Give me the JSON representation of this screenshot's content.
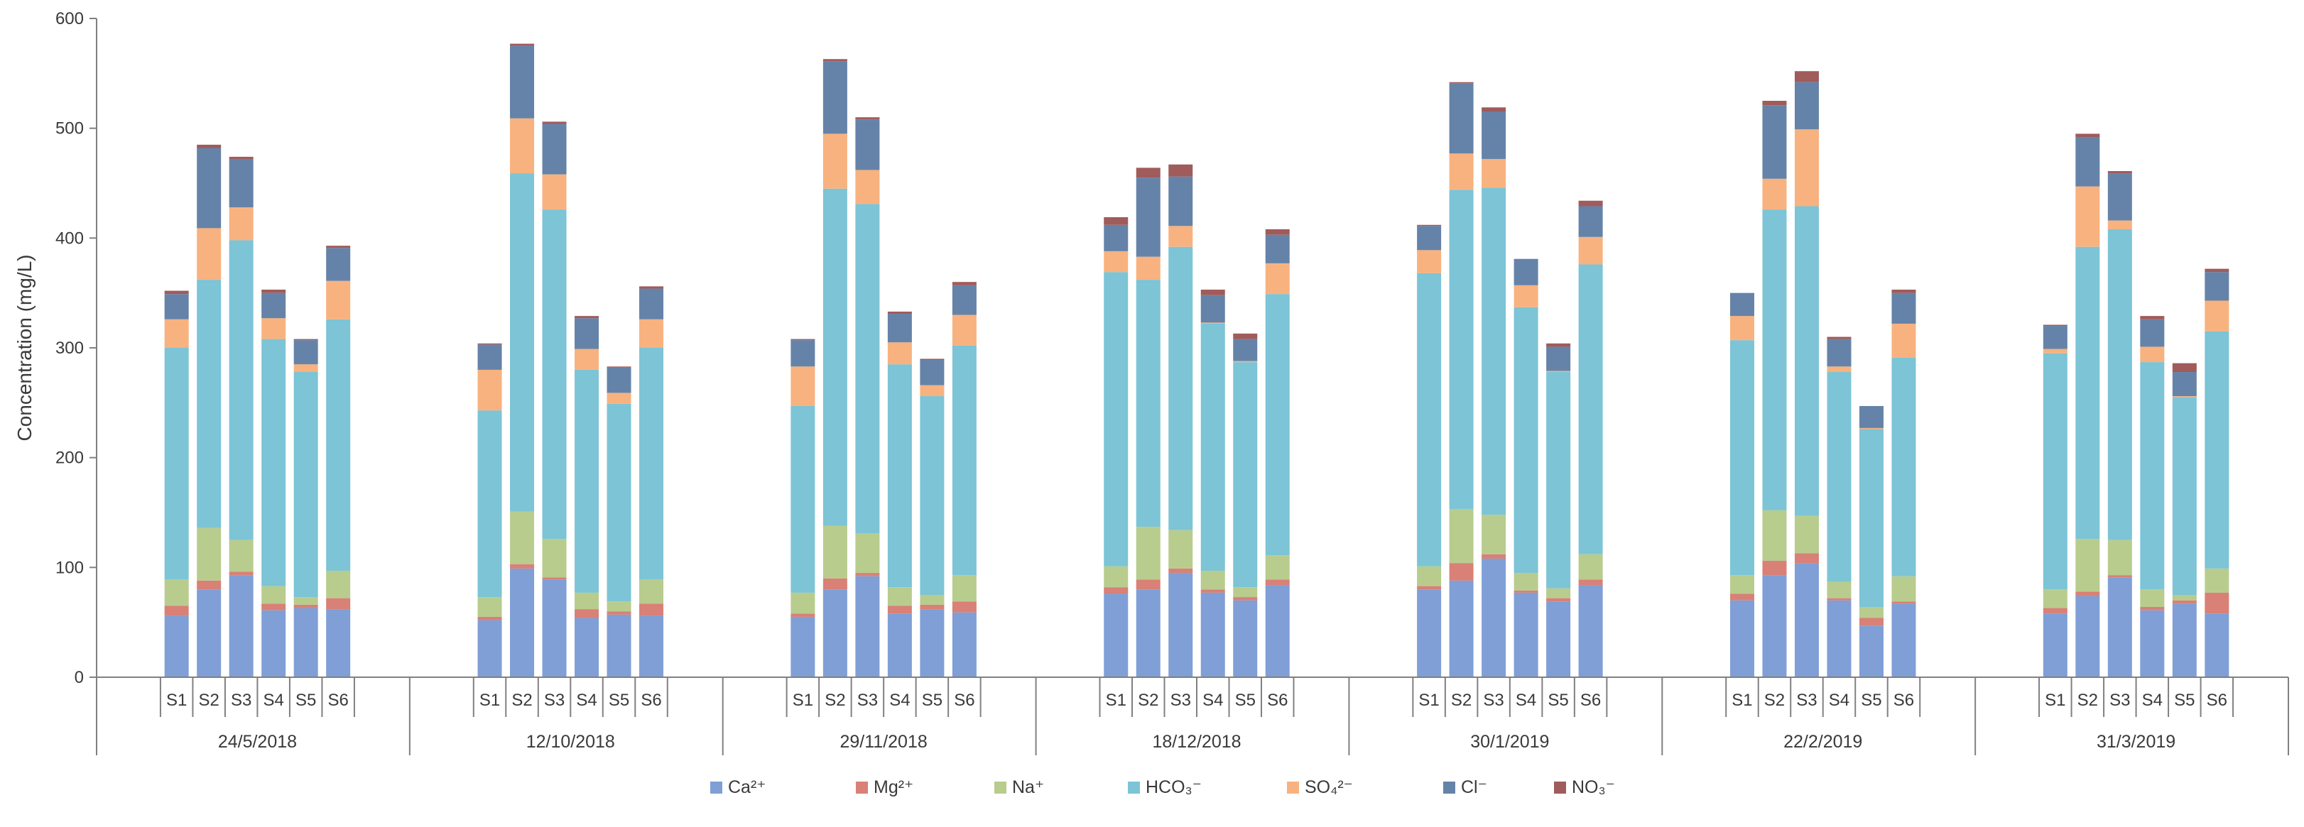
{
  "chart_data": {
    "type": "bar",
    "stacked": true,
    "title": "",
    "ylabel": "Concentration (mg/L)",
    "xlabel": "",
    "ylim": [
      0,
      600
    ],
    "yticks": [
      0,
      100,
      200,
      300,
      400,
      500,
      600
    ],
    "grid": false,
    "legend_position": "bottom",
    "sites": [
      "S1",
      "S2",
      "S3",
      "S4",
      "S5",
      "S6"
    ],
    "dates": [
      "24/5/2018",
      "12/10/2018",
      "29/11/2018",
      "18/12/2018",
      "30/1/2019",
      "22/2/2019",
      "31/3/2019"
    ],
    "series": [
      {
        "name": "Ca²⁺",
        "color": "#7f9fd6",
        "values": [
          [
            56,
            80,
            93,
            61,
            63,
            62
          ],
          [
            52,
            99,
            89,
            54,
            57,
            56
          ],
          [
            55,
            80,
            92,
            58,
            62,
            59
          ],
          [
            76,
            80,
            95,
            77,
            70,
            84
          ],
          [
            80,
            88,
            108,
            77,
            69,
            84
          ],
          [
            70,
            93,
            104,
            70,
            47,
            67
          ],
          [
            58,
            74,
            91,
            61,
            67,
            58
          ]
        ]
      },
      {
        "name": "Mg²⁺",
        "color": "#d98077",
        "values": [
          [
            9,
            8,
            3,
            6,
            3,
            10
          ],
          [
            3,
            4,
            2,
            8,
            3,
            11
          ],
          [
            3,
            10,
            3,
            7,
            4,
            10
          ],
          [
            6,
            9,
            4,
            3,
            3,
            5
          ],
          [
            3,
            16,
            4,
            2,
            3,
            5
          ],
          [
            6,
            13,
            9,
            2,
            7,
            2
          ],
          [
            5,
            4,
            2,
            3,
            3,
            19
          ]
        ]
      },
      {
        "name": "Na⁺",
        "color": "#b8cc8e",
        "values": [
          [
            24,
            48,
            29,
            16,
            7,
            25
          ],
          [
            18,
            48,
            35,
            15,
            9,
            22
          ],
          [
            19,
            48,
            36,
            17,
            9,
            24
          ],
          [
            19,
            48,
            35,
            17,
            9,
            22
          ],
          [
            18,
            49,
            36,
            16,
            9,
            23
          ],
          [
            17,
            46,
            34,
            15,
            10,
            23
          ],
          [
            17,
            48,
            32,
            16,
            5,
            22
          ]
        ]
      },
      {
        "name": "HCO₃⁻",
        "color": "#7cc4d6",
        "values": [
          [
            211,
            226,
            273,
            225,
            205,
            229
          ],
          [
            170,
            308,
            300,
            203,
            180,
            211
          ],
          [
            170,
            307,
            300,
            203,
            181,
            209
          ],
          [
            268,
            225,
            258,
            225,
            205,
            238
          ],
          [
            267,
            291,
            298,
            242,
            197,
            264
          ],
          [
            214,
            274,
            282,
            191,
            162,
            199
          ],
          [
            215,
            266,
            283,
            207,
            180,
            216
          ]
        ]
      },
      {
        "name": "SO₄²⁻",
        "color": "#f8b27f",
        "values": [
          [
            26,
            47,
            30,
            19,
            7,
            35
          ],
          [
            37,
            50,
            32,
            19,
            10,
            26
          ],
          [
            36,
            50,
            31,
            20,
            10,
            28
          ],
          [
            19,
            21,
            19,
            1,
            1,
            28
          ],
          [
            21,
            33,
            26,
            20,
            1,
            25
          ],
          [
            22,
            28,
            70,
            5,
            1,
            31
          ],
          [
            4,
            55,
            8,
            14,
            1,
            28
          ]
        ]
      },
      {
        "name": "Cl⁻",
        "color": "#6583a8",
        "values": [
          [
            23,
            73,
            44,
            23,
            22,
            30
          ],
          [
            23,
            66,
            46,
            28,
            23,
            28
          ],
          [
            24,
            66,
            46,
            26,
            23,
            27
          ],
          [
            24,
            72,
            45,
            25,
            20,
            26
          ],
          [
            22,
            64,
            43,
            24,
            22,
            28
          ],
          [
            21,
            67,
            43,
            25,
            20,
            28
          ],
          [
            21,
            45,
            43,
            25,
            22,
            26
          ]
        ]
      },
      {
        "name": "NO₃⁻",
        "color": "#a05b5b",
        "values": [
          [
            3,
            3,
            2,
            3,
            1,
            2
          ],
          [
            1,
            2,
            2,
            2,
            1,
            2
          ],
          [
            1,
            2,
            2,
            2,
            1,
            3
          ],
          [
            7,
            9,
            11,
            5,
            5,
            5
          ],
          [
            1,
            1,
            4,
            0,
            3,
            5
          ],
          [
            0,
            4,
            10,
            2,
            0,
            3
          ],
          [
            1,
            3,
            2,
            3,
            8,
            3
          ]
        ]
      }
    ]
  }
}
